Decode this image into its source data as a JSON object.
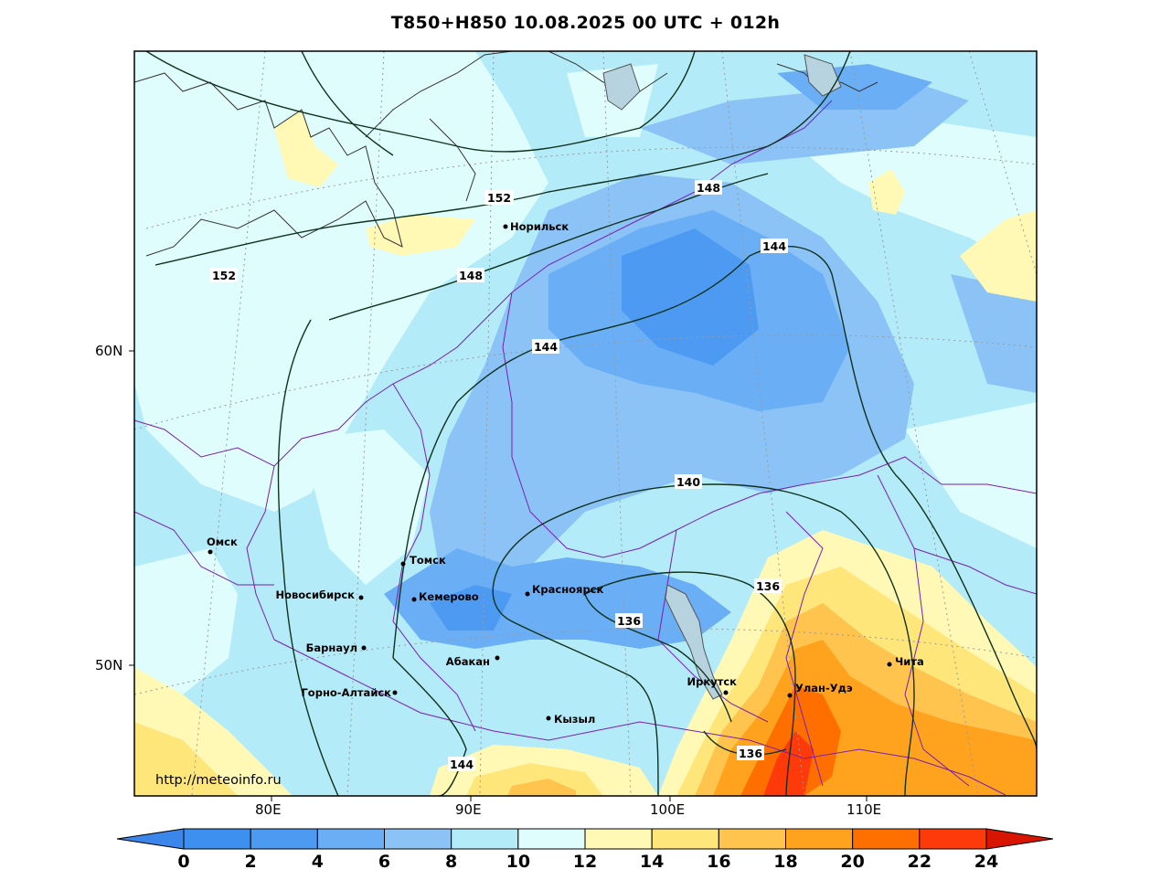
{
  "title": "T850+H850 10.08.2025 00 UTC + 012h",
  "watermark": "http://meteoinfo.ru",
  "lon_labels": [
    "80E",
    "90E",
    "100E",
    "110E"
  ],
  "lat_labels": [
    "60N",
    "50N"
  ],
  "cities": [
    {
      "name": "Норильск"
    },
    {
      "name": "Омск"
    },
    {
      "name": "Томск"
    },
    {
      "name": "Новосибирск"
    },
    {
      "name": "Кемерово"
    },
    {
      "name": "Красноярск"
    },
    {
      "name": "Барнаул"
    },
    {
      "name": "Абакан"
    },
    {
      "name": "Горно-Алтайск"
    },
    {
      "name": "Иркутск"
    },
    {
      "name": "Улан-Удэ"
    },
    {
      "name": "Чита"
    },
    {
      "name": "Кызыл"
    }
  ],
  "isohypse_labels": [
    "152",
    "152",
    "148",
    "148",
    "144",
    "144",
    "144",
    "140",
    "136",
    "136",
    "136"
  ],
  "colorbar": {
    "ticks": [
      "0",
      "2",
      "4",
      "6",
      "8",
      "10",
      "12",
      "14",
      "16",
      "18",
      "20",
      "22",
      "24"
    ],
    "colors": [
      "#3d8ff0",
      "#4c9af2",
      "#6aaef5",
      "#8cc3f7",
      "#b3ebf8",
      "#e0fdfd",
      "#fff9b5",
      "#ffe67a",
      "#ffc44e",
      "#ffa31f",
      "#ff6f00",
      "#ff3a0a"
    ],
    "under_color": "#3a86ea",
    "over_color": "#d81500"
  }
}
